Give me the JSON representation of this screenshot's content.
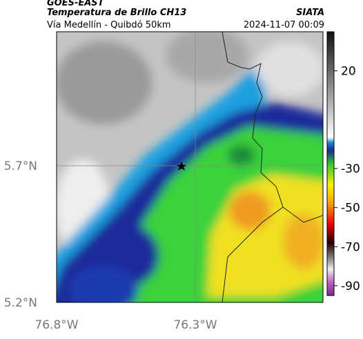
{
  "header": {
    "title": "GOES-EAST",
    "subtitle": "Temperatura de Brillo CH13",
    "source": "SIATA",
    "route": "Vía Medellín - Quibdó 50km",
    "timestamp": "2024-11-07 00:09"
  },
  "map": {
    "xlim": [
      -76.8,
      -75.84
    ],
    "ylim": [
      5.2,
      6.19
    ],
    "xticks": [
      {
        "value": -76.8,
        "label": "76.8°W"
      },
      {
        "value": -76.3,
        "label": "76.3°W"
      }
    ],
    "yticks": [
      {
        "value": 5.2,
        "label": "5.2°N"
      },
      {
        "value": 5.7,
        "label": "5.7°N"
      }
    ],
    "grid": true
  },
  "colorbar": {
    "lim": [
      -95,
      40
    ],
    "ticks": [
      20,
      -30,
      -50,
      -70,
      -90
    ]
  }
}
